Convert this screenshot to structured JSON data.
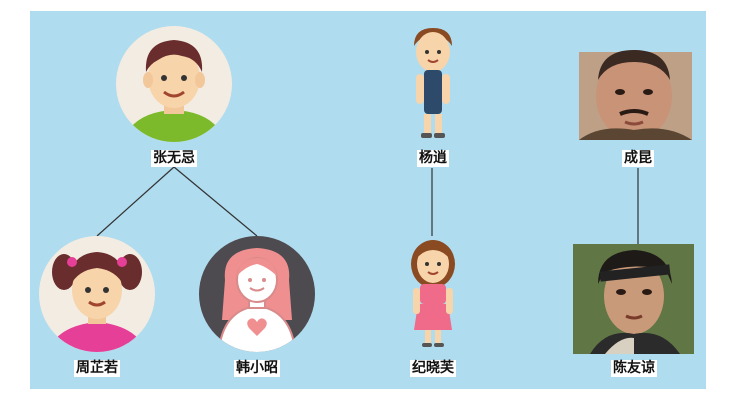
{
  "nodes": {
    "zhang_wuji": {
      "name": "张无忌",
      "icon": "boy-avatar-icon"
    },
    "zhou_zhiruo": {
      "name": "周芷若",
      "icon": "girl-pigtails-avatar-icon"
    },
    "han_xiaozhao": {
      "name": "韩小昭",
      "icon": "woman-heart-shirt-icon"
    },
    "yang_xiao": {
      "name": "杨逍",
      "icon": "boy-figure-icon"
    },
    "ji_xiaofu": {
      "name": "纪晓芙",
      "icon": "girl-figure-icon"
    },
    "cheng_kun": {
      "name": "成昆",
      "icon": "man-photo-portrait"
    },
    "chen_youliang": {
      "name": "陈友谅",
      "icon": "headband-man-photo-portrait"
    }
  },
  "colors": {
    "background": "#b0dcef",
    "edge": "#333333"
  }
}
